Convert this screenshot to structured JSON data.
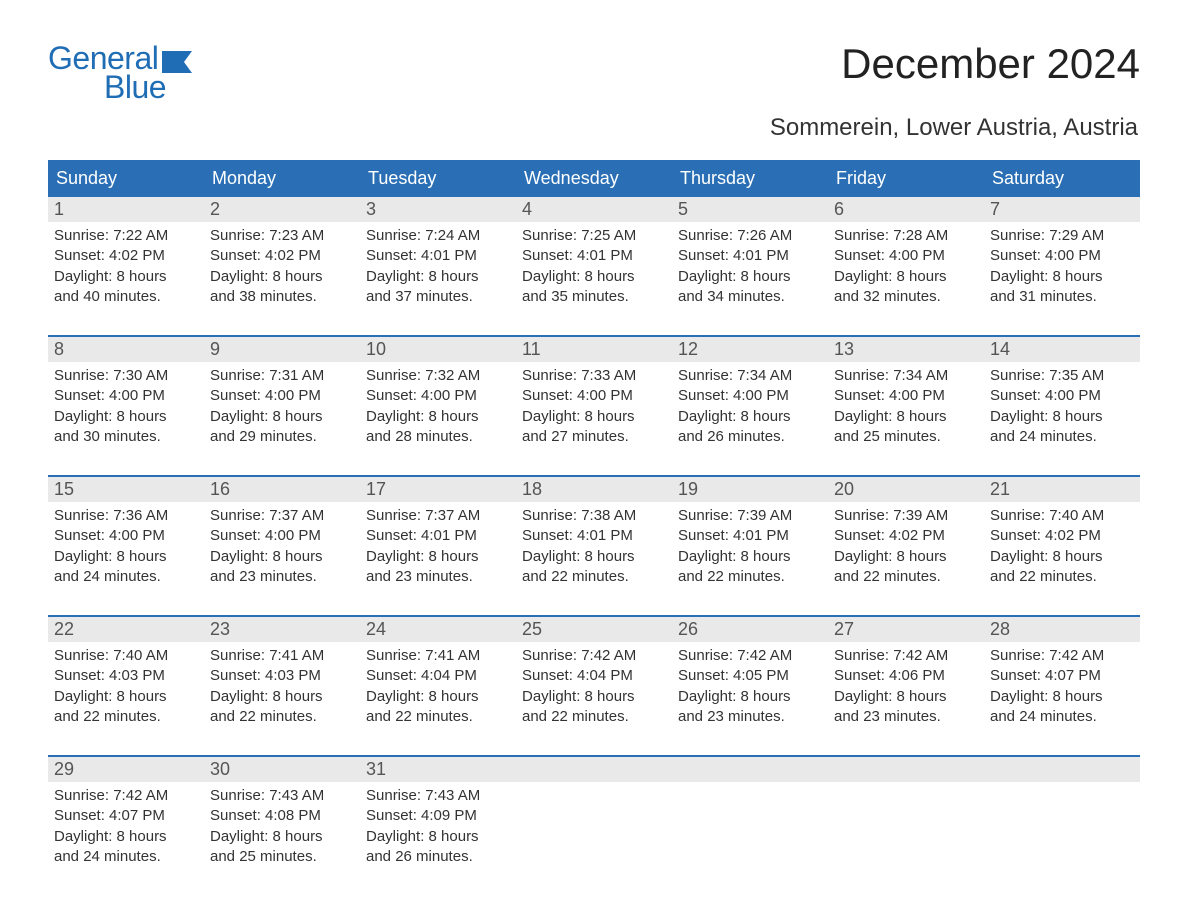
{
  "logo": {
    "word1": "General",
    "word2": "Blue",
    "color": "#1f6db5",
    "flag_color": "#1f6db5"
  },
  "header": {
    "title": "December 2024",
    "subtitle": "Sommerein, Lower Austria, Austria"
  },
  "calendar": {
    "header_bg": "#2a6fb5",
    "header_text_color": "#ffffff",
    "rule_color": "#2a6fb5",
    "daynum_bg": "#e9e9e9",
    "text_color": "#333333",
    "font_family": "Arial, Helvetica, sans-serif",
    "columns": [
      "Sunday",
      "Monday",
      "Tuesday",
      "Wednesday",
      "Thursday",
      "Friday",
      "Saturday"
    ],
    "weeks": [
      [
        {
          "day": "1",
          "sunrise": "Sunrise: 7:22 AM",
          "sunset": "Sunset: 4:02 PM",
          "daylight1": "Daylight: 8 hours",
          "daylight2": "and 40 minutes."
        },
        {
          "day": "2",
          "sunrise": "Sunrise: 7:23 AM",
          "sunset": "Sunset: 4:02 PM",
          "daylight1": "Daylight: 8 hours",
          "daylight2": "and 38 minutes."
        },
        {
          "day": "3",
          "sunrise": "Sunrise: 7:24 AM",
          "sunset": "Sunset: 4:01 PM",
          "daylight1": "Daylight: 8 hours",
          "daylight2": "and 37 minutes."
        },
        {
          "day": "4",
          "sunrise": "Sunrise: 7:25 AM",
          "sunset": "Sunset: 4:01 PM",
          "daylight1": "Daylight: 8 hours",
          "daylight2": "and 35 minutes."
        },
        {
          "day": "5",
          "sunrise": "Sunrise: 7:26 AM",
          "sunset": "Sunset: 4:01 PM",
          "daylight1": "Daylight: 8 hours",
          "daylight2": "and 34 minutes."
        },
        {
          "day": "6",
          "sunrise": "Sunrise: 7:28 AM",
          "sunset": "Sunset: 4:00 PM",
          "daylight1": "Daylight: 8 hours",
          "daylight2": "and 32 minutes."
        },
        {
          "day": "7",
          "sunrise": "Sunrise: 7:29 AM",
          "sunset": "Sunset: 4:00 PM",
          "daylight1": "Daylight: 8 hours",
          "daylight2": "and 31 minutes."
        }
      ],
      [
        {
          "day": "8",
          "sunrise": "Sunrise: 7:30 AM",
          "sunset": "Sunset: 4:00 PM",
          "daylight1": "Daylight: 8 hours",
          "daylight2": "and 30 minutes."
        },
        {
          "day": "9",
          "sunrise": "Sunrise: 7:31 AM",
          "sunset": "Sunset: 4:00 PM",
          "daylight1": "Daylight: 8 hours",
          "daylight2": "and 29 minutes."
        },
        {
          "day": "10",
          "sunrise": "Sunrise: 7:32 AM",
          "sunset": "Sunset: 4:00 PM",
          "daylight1": "Daylight: 8 hours",
          "daylight2": "and 28 minutes."
        },
        {
          "day": "11",
          "sunrise": "Sunrise: 7:33 AM",
          "sunset": "Sunset: 4:00 PM",
          "daylight1": "Daylight: 8 hours",
          "daylight2": "and 27 minutes."
        },
        {
          "day": "12",
          "sunrise": "Sunrise: 7:34 AM",
          "sunset": "Sunset: 4:00 PM",
          "daylight1": "Daylight: 8 hours",
          "daylight2": "and 26 minutes."
        },
        {
          "day": "13",
          "sunrise": "Sunrise: 7:34 AM",
          "sunset": "Sunset: 4:00 PM",
          "daylight1": "Daylight: 8 hours",
          "daylight2": "and 25 minutes."
        },
        {
          "day": "14",
          "sunrise": "Sunrise: 7:35 AM",
          "sunset": "Sunset: 4:00 PM",
          "daylight1": "Daylight: 8 hours",
          "daylight2": "and 24 minutes."
        }
      ],
      [
        {
          "day": "15",
          "sunrise": "Sunrise: 7:36 AM",
          "sunset": "Sunset: 4:00 PM",
          "daylight1": "Daylight: 8 hours",
          "daylight2": "and 24 minutes."
        },
        {
          "day": "16",
          "sunrise": "Sunrise: 7:37 AM",
          "sunset": "Sunset: 4:00 PM",
          "daylight1": "Daylight: 8 hours",
          "daylight2": "and 23 minutes."
        },
        {
          "day": "17",
          "sunrise": "Sunrise: 7:37 AM",
          "sunset": "Sunset: 4:01 PM",
          "daylight1": "Daylight: 8 hours",
          "daylight2": "and 23 minutes."
        },
        {
          "day": "18",
          "sunrise": "Sunrise: 7:38 AM",
          "sunset": "Sunset: 4:01 PM",
          "daylight1": "Daylight: 8 hours",
          "daylight2": "and 22 minutes."
        },
        {
          "day": "19",
          "sunrise": "Sunrise: 7:39 AM",
          "sunset": "Sunset: 4:01 PM",
          "daylight1": "Daylight: 8 hours",
          "daylight2": "and 22 minutes."
        },
        {
          "day": "20",
          "sunrise": "Sunrise: 7:39 AM",
          "sunset": "Sunset: 4:02 PM",
          "daylight1": "Daylight: 8 hours",
          "daylight2": "and 22 minutes."
        },
        {
          "day": "21",
          "sunrise": "Sunrise: 7:40 AM",
          "sunset": "Sunset: 4:02 PM",
          "daylight1": "Daylight: 8 hours",
          "daylight2": "and 22 minutes."
        }
      ],
      [
        {
          "day": "22",
          "sunrise": "Sunrise: 7:40 AM",
          "sunset": "Sunset: 4:03 PM",
          "daylight1": "Daylight: 8 hours",
          "daylight2": "and 22 minutes."
        },
        {
          "day": "23",
          "sunrise": "Sunrise: 7:41 AM",
          "sunset": "Sunset: 4:03 PM",
          "daylight1": "Daylight: 8 hours",
          "daylight2": "and 22 minutes."
        },
        {
          "day": "24",
          "sunrise": "Sunrise: 7:41 AM",
          "sunset": "Sunset: 4:04 PM",
          "daylight1": "Daylight: 8 hours",
          "daylight2": "and 22 minutes."
        },
        {
          "day": "25",
          "sunrise": "Sunrise: 7:42 AM",
          "sunset": "Sunset: 4:04 PM",
          "daylight1": "Daylight: 8 hours",
          "daylight2": "and 22 minutes."
        },
        {
          "day": "26",
          "sunrise": "Sunrise: 7:42 AM",
          "sunset": "Sunset: 4:05 PM",
          "daylight1": "Daylight: 8 hours",
          "daylight2": "and 23 minutes."
        },
        {
          "day": "27",
          "sunrise": "Sunrise: 7:42 AM",
          "sunset": "Sunset: 4:06 PM",
          "daylight1": "Daylight: 8 hours",
          "daylight2": "and 23 minutes."
        },
        {
          "day": "28",
          "sunrise": "Sunrise: 7:42 AM",
          "sunset": "Sunset: 4:07 PM",
          "daylight1": "Daylight: 8 hours",
          "daylight2": "and 24 minutes."
        }
      ],
      [
        {
          "day": "29",
          "sunrise": "Sunrise: 7:42 AM",
          "sunset": "Sunset: 4:07 PM",
          "daylight1": "Daylight: 8 hours",
          "daylight2": "and 24 minutes."
        },
        {
          "day": "30",
          "sunrise": "Sunrise: 7:43 AM",
          "sunset": "Sunset: 4:08 PM",
          "daylight1": "Daylight: 8 hours",
          "daylight2": "and 25 minutes."
        },
        {
          "day": "31",
          "sunrise": "Sunrise: 7:43 AM",
          "sunset": "Sunset: 4:09 PM",
          "daylight1": "Daylight: 8 hours",
          "daylight2": "and 26 minutes."
        },
        null,
        null,
        null,
        null
      ]
    ]
  }
}
